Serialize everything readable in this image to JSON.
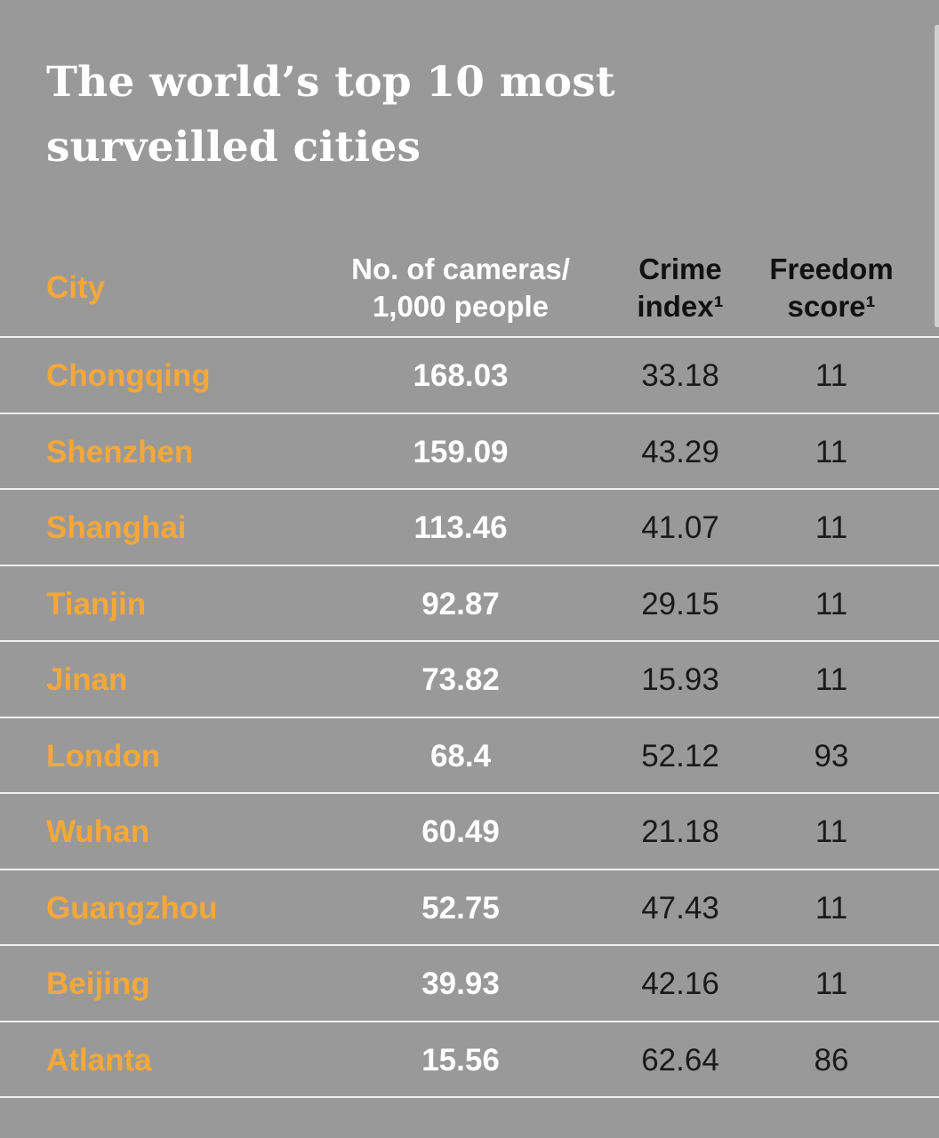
{
  "title": "The world’s top 10 most surveilled cities",
  "colors": {
    "background": "#999999",
    "city_text": "#f5a83a",
    "cameras_text": "#ffffff",
    "other_text": "#1a1a1a",
    "rule": "#f0f0f0"
  },
  "chart_data": {
    "type": "table",
    "title": "The world’s top 10 most surveilled cities",
    "columns": [
      {
        "key": "city",
        "label": "City",
        "label_lines": [
          "City"
        ]
      },
      {
        "key": "cameras",
        "label": "No. of cameras/ 1,000 people",
        "label_lines": [
          "No. of cameras/",
          "1,000 people"
        ]
      },
      {
        "key": "crime",
        "label": "Crime index¹",
        "label_lines": [
          "Crime",
          "index¹"
        ]
      },
      {
        "key": "freedom",
        "label": "Freedom score¹",
        "label_lines": [
          "Freedom",
          "score¹"
        ]
      }
    ],
    "rows": [
      {
        "city": "Chongqing",
        "cameras": "168.03",
        "crime": "33.18",
        "freedom": "11"
      },
      {
        "city": "Shenzhen",
        "cameras": "159.09",
        "crime": "43.29",
        "freedom": "11"
      },
      {
        "city": "Shanghai",
        "cameras": "113.46",
        "crime": "41.07",
        "freedom": "11"
      },
      {
        "city": "Tianjin",
        "cameras": "92.87",
        "crime": "29.15",
        "freedom": "11"
      },
      {
        "city": "Jinan",
        "cameras": "73.82",
        "crime": "15.93",
        "freedom": "11"
      },
      {
        "city": "London",
        "cameras": "68.4",
        "crime": "52.12",
        "freedom": "93"
      },
      {
        "city": "Wuhan",
        "cameras": "60.49",
        "crime": "21.18",
        "freedom": "11"
      },
      {
        "city": "Guangzhou",
        "cameras": "52.75",
        "crime": "47.43",
        "freedom": "11"
      },
      {
        "city": "Beijing",
        "cameras": "39.93",
        "crime": "42.16",
        "freedom": "11"
      },
      {
        "city": "Atlanta",
        "cameras": "15.56",
        "crime": "62.64",
        "freedom": "86"
      }
    ]
  }
}
